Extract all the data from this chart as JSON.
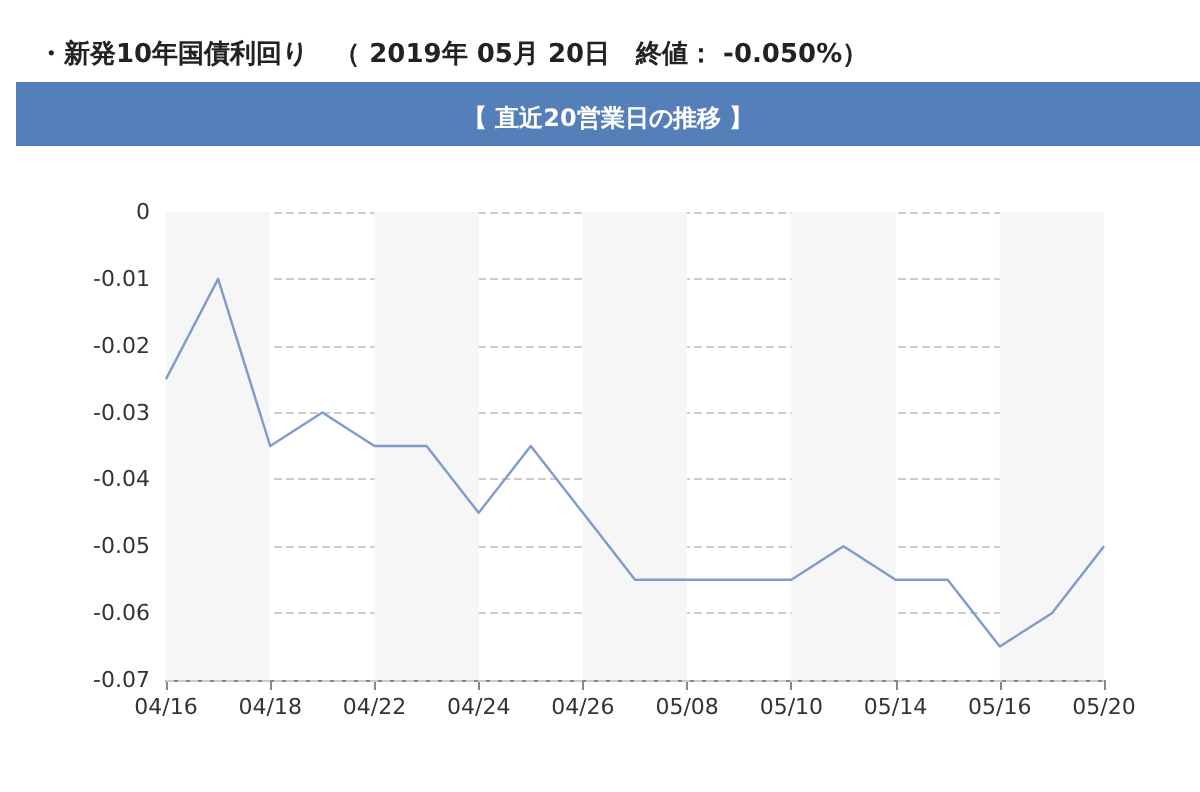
{
  "chart_data": {
    "type": "line",
    "title": "・新発10年国債利回り　（ 2019年 05月 20日　終値： -0.050%）",
    "subtitle": "【 直近20営業日の推移 】",
    "categories": [
      "04/16",
      null,
      "04/18",
      null,
      "04/22",
      null,
      "04/24",
      null,
      "04/26",
      null,
      "05/08",
      null,
      "05/10",
      null,
      "05/14",
      null,
      "05/16",
      null,
      "05/20"
    ],
    "series": [
      {
        "color": "#7f9acb",
        "values": [
          -0.025,
          -0.01,
          -0.035,
          -0.03,
          -0.035,
          -0.035,
          -0.045,
          -0.035,
          -0.045,
          -0.055,
          -0.055,
          -0.055,
          -0.055,
          -0.05,
          -0.055,
          -0.055,
          -0.065,
          -0.06,
          -0.05
        ]
      }
    ],
    "ylim": [
      -0.07,
      0
    ],
    "yticks": [
      -0.07,
      -0.06,
      -0.05,
      -0.04,
      -0.03,
      -0.02,
      -0.01,
      0
    ],
    "grid": "y",
    "marker": "none",
    "line_style": "solid",
    "bands": [
      {
        "axis": "x",
        "from": "04/16",
        "to": "04/18",
        "color": "#f6f6f6"
      },
      {
        "axis": "x",
        "from": "04/22",
        "to": "04/24",
        "color": "#f6f6f6"
      },
      {
        "axis": "x",
        "from": "04/26",
        "to": "05/08",
        "color": "#f6f6f6"
      },
      {
        "axis": "x",
        "from": "05/10",
        "to": "05/14",
        "color": "#f6f6f6"
      },
      {
        "axis": "x",
        "from": "05/16",
        "to": "05/20",
        "color": "#f6f6f6"
      }
    ]
  }
}
